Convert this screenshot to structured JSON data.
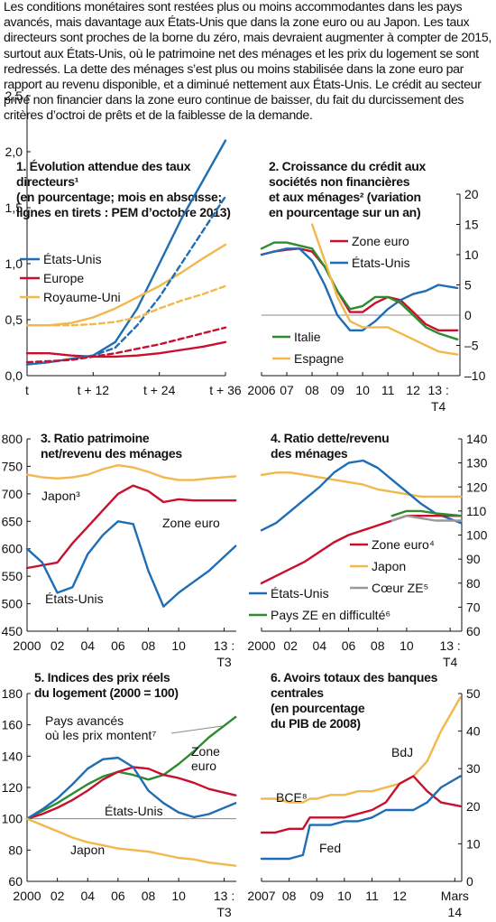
{
  "intro_text": "Les conditions monétaires sont restées plus ou moins accommodantes dans les pays avancés, mais davantage aux États-Unis que dans la zone euro ou au Japon. Les taux directeurs sont proches de la borne du zéro, mais devraient augmenter à compter de 2015, surtout aux États-Unis, où le patrimoine net des ménages et les prix du logement se sont redressés. La dette des ménages s’est plus ou moins stabilisée dans la zone euro par rapport au revenu disponible, et a diminué nettement aux États-Unis. Le crédit au secteur privé non financier dans la zone euro continue de baisser, du fait du durcissement des critères d’octroi de prêts et de la faiblesse de la demande.",
  "colors": {
    "usa": "#1f6db5",
    "europe": "#c8102e",
    "uk": "#f2b84b",
    "italy": "#2e8b2e",
    "grey": "#999999",
    "dark": "#111111"
  },
  "chart_data": [
    {
      "id": "p1",
      "type": "line",
      "title": "1. Évolution attendue des taux directeurs¹\n(en pourcentage; mois en abscisse; lignes en tirets : PEM d’octobre 2013)",
      "xticks": [
        "t",
        "t + 12",
        "t + 24",
        "t + 36"
      ],
      "yticks": [
        "0,0",
        "0,5",
        "1,0",
        "1,5",
        "2,0",
        "2,5"
      ],
      "ylim": [
        0,
        2.5
      ],
      "x": [
        0,
        4,
        8,
        12,
        16,
        20,
        24,
        28,
        32,
        36
      ],
      "series": [
        {
          "name": "États-Unis",
          "color": "usa",
          "dashed": false,
          "values": [
            0.1,
            0.12,
            0.15,
            0.18,
            0.3,
            0.6,
            1.0,
            1.4,
            1.75,
            2.1
          ]
        },
        {
          "name": "Europe",
          "color": "europe",
          "dashed": false,
          "values": [
            0.2,
            0.2,
            0.18,
            0.17,
            0.17,
            0.18,
            0.2,
            0.23,
            0.26,
            0.3
          ]
        },
        {
          "name": "Royaume-Uni",
          "color": "uk",
          "dashed": false,
          "values": [
            0.45,
            0.45,
            0.47,
            0.52,
            0.6,
            0.7,
            0.8,
            0.92,
            1.05,
            1.17
          ]
        },
        {
          "name": "",
          "color": "usa",
          "dashed": true,
          "values": [
            0.1,
            0.12,
            0.15,
            0.18,
            0.25,
            0.45,
            0.7,
            1.0,
            1.3,
            1.6
          ]
        },
        {
          "name": "",
          "color": "europe",
          "dashed": true,
          "values": [
            0.12,
            0.13,
            0.14,
            0.17,
            0.2,
            0.24,
            0.28,
            0.33,
            0.38,
            0.43
          ]
        },
        {
          "name": "",
          "color": "uk",
          "dashed": true,
          "values": [
            0.45,
            0.45,
            0.45,
            0.46,
            0.48,
            0.52,
            0.6,
            0.67,
            0.73,
            0.8
          ]
        }
      ],
      "legend": [
        {
          "label": "États-Unis",
          "color": "usa"
        },
        {
          "label": "Europe",
          "color": "europe"
        },
        {
          "label": "Royaume-Uni",
          "color": "uk"
        }
      ]
    },
    {
      "id": "p2",
      "type": "line",
      "title": "2. Croissance du crédit aux\nsociétés non financières\net aux ménages² (variation\nen pourcentage sur un an)",
      "xticks": [
        "2006",
        "07",
        "08",
        "09",
        "10",
        "11",
        "12",
        "13 :"
      ],
      "xsub": "T4",
      "yticks": [
        "–10",
        "–5",
        "0",
        "5",
        "10",
        "15",
        "20"
      ],
      "ylim": [
        -10,
        20
      ],
      "x": [
        2006,
        2006.5,
        2007,
        2007.5,
        2008,
        2008.5,
        2009,
        2009.5,
        2010,
        2010.5,
        2011,
        2011.5,
        2012,
        2012.5,
        2013,
        2013.75
      ],
      "series": [
        {
          "name": "Zone euro",
          "color": "europe",
          "values": [
            10,
            10.5,
            10.8,
            11,
            10.5,
            8,
            4,
            0.5,
            0.5,
            2,
            3,
            2.5,
            0.5,
            -1.5,
            -2.5,
            -2.5
          ]
        },
        {
          "name": "États-Unis",
          "color": "usa",
          "values": [
            10,
            10.5,
            11,
            11,
            9,
            5,
            0,
            -2.5,
            -2.5,
            -1,
            1,
            2.5,
            3.5,
            4,
            5,
            4.5
          ]
        },
        {
          "name": "Italie",
          "color": "italy",
          "values": [
            11,
            12,
            12,
            11.5,
            11,
            8,
            4,
            1,
            1.5,
            3,
            3,
            2,
            0,
            -2,
            -3,
            -4
          ]
        },
        {
          "name": "Espagne",
          "color": "uk",
          "values": [
            null,
            null,
            null,
            null,
            15,
            9,
            3,
            -1,
            -2,
            -2,
            -2,
            -3,
            -4,
            -5,
            -6,
            -6.5
          ]
        }
      ],
      "legend": [
        {
          "label": "Zone euro",
          "color": "europe"
        },
        {
          "label": "États-Unis",
          "color": "usa"
        },
        {
          "label": "Italie",
          "color": "italy"
        },
        {
          "label": "Espagne",
          "color": "uk"
        }
      ]
    },
    {
      "id": "p3",
      "type": "line",
      "title": "3. Ratio patrimoine\nnet/revenu des ménages",
      "xticks": [
        "2000",
        "02",
        "04",
        "06",
        "08",
        "10",
        "13 :"
      ],
      "xsub": "T3",
      "yticks": [
        "450",
        "500",
        "550",
        "600",
        "650",
        "700",
        "750",
        "800"
      ],
      "ylim": [
        450,
        800
      ],
      "x": [
        2000,
        2001,
        2002,
        2003,
        2004,
        2005,
        2006,
        2007,
        2008,
        2009,
        2010,
        2011,
        2012,
        2013.75
      ],
      "series": [
        {
          "name": "Japon³",
          "color": "uk",
          "values": [
            735,
            730,
            728,
            730,
            735,
            745,
            752,
            748,
            740,
            730,
            725,
            725,
            728,
            732
          ]
        },
        {
          "name": "Zone euro",
          "color": "europe",
          "values": [
            565,
            570,
            575,
            610,
            640,
            670,
            700,
            715,
            705,
            685,
            690,
            688,
            688,
            688
          ]
        },
        {
          "name": "États-Unis",
          "color": "usa",
          "values": [
            600,
            575,
            520,
            530,
            590,
            625,
            650,
            645,
            560,
            495,
            520,
            540,
            560,
            605
          ]
        }
      ],
      "labels": [
        "Japon³",
        "Zone euro",
        "États-Unis"
      ]
    },
    {
      "id": "p4",
      "type": "line",
      "title": "4. Ratio dette/revenu\ndes ménages",
      "xticks": [
        "2000",
        "02",
        "04",
        "06",
        "08",
        "10",
        "13 :"
      ],
      "xsub": "T4",
      "yticks": [
        "60",
        "70",
        "80",
        "90",
        "100",
        "110",
        "120",
        "130",
        "140"
      ],
      "ylim": [
        60,
        140
      ],
      "x": [
        2000,
        2001,
        2002,
        2003,
        2004,
        2005,
        2006,
        2007,
        2008,
        2009,
        2010,
        2011,
        2012,
        2013.75
      ],
      "series": [
        {
          "name": "Japon",
          "color": "uk",
          "values": [
            125,
            126,
            126,
            125,
            124,
            123,
            122,
            121,
            119,
            118,
            117,
            116,
            116,
            116
          ]
        },
        {
          "name": "États-Unis",
          "color": "usa",
          "values": [
            102,
            105,
            110,
            115,
            120,
            126,
            130,
            131,
            128,
            123,
            118,
            113,
            109,
            105
          ]
        },
        {
          "name": "Zone euro⁴",
          "color": "europe",
          "values": [
            80,
            83,
            86,
            89,
            93,
            97,
            100,
            102,
            104,
            106,
            108,
            108,
            108,
            108
          ]
        },
        {
          "name": "Cœur ZE⁵",
          "color": "grey",
          "values": [
            null,
            null,
            null,
            null,
            null,
            null,
            null,
            null,
            null,
            106,
            108,
            107,
            106,
            106
          ]
        },
        {
          "name": "Pays ZE en difficulté⁶",
          "color": "italy",
          "values": [
            null,
            null,
            null,
            null,
            null,
            null,
            null,
            null,
            null,
            108,
            110,
            110,
            109,
            108
          ]
        }
      ],
      "legend": [
        {
          "label": "Zone euro⁴",
          "color": "europe"
        },
        {
          "label": "Japon",
          "color": "uk"
        },
        {
          "label": "États-Unis",
          "color": "usa"
        },
        {
          "label": "Cœur ZE⁵",
          "color": "grey"
        },
        {
          "label": "Pays ZE en difficulté⁶",
          "color": "italy"
        }
      ]
    },
    {
      "id": "p5",
      "type": "line",
      "title": "5. Indices des prix réels\ndu logement (2000 = 100)",
      "xticks": [
        "2000",
        "02",
        "04",
        "06",
        "08",
        "10",
        "13 :"
      ],
      "xsub": "T3",
      "yticks": [
        "60",
        "80",
        "100",
        "120",
        "140",
        "160",
        "180"
      ],
      "ylim": [
        60,
        180
      ],
      "x": [
        2000,
        2001,
        2002,
        2003,
        2004,
        2005,
        2006,
        2007,
        2008,
        2009,
        2010,
        2011,
        2012,
        2013.75
      ],
      "series": [
        {
          "name": "Pays avancés où les prix montent⁷",
          "color": "italy",
          "values": [
            100,
            105,
            110,
            116,
            122,
            127,
            130,
            128,
            125,
            128,
            135,
            143,
            152,
            165
          ]
        },
        {
          "name": "Zone euro",
          "color": "europe",
          "values": [
            100,
            103,
            107,
            112,
            118,
            125,
            130,
            133,
            132,
            128,
            126,
            123,
            119,
            115
          ]
        },
        {
          "name": "États-Unis",
          "color": "usa",
          "values": [
            100,
            106,
            113,
            122,
            132,
            138,
            139,
            133,
            118,
            110,
            104,
            101,
            103,
            110
          ]
        },
        {
          "name": "Japon",
          "color": "uk",
          "values": [
            100,
            96,
            92,
            88,
            85,
            83,
            81,
            80,
            79,
            77,
            75,
            74,
            72,
            70
          ]
        }
      ],
      "labels": [
        "Pays avancés\noù les prix montent⁷",
        "Zone\neuro",
        "États-Unis",
        "Japon"
      ]
    },
    {
      "id": "p6",
      "type": "line",
      "title": "6. Avoirs totaux des banques\ncentrales\n(en pourcentage\ndu PIB de 2008)",
      "xticks": [
        "2007",
        "08",
        "09",
        "10",
        "11",
        "12",
        "Mars"
      ],
      "xsub": "14",
      "yticks": [
        "0",
        "10",
        "20",
        "30",
        "40",
        "50"
      ],
      "ylim": [
        0,
        50
      ],
      "x": [
        2007,
        2007.5,
        2008,
        2008.5,
        2008.75,
        2009,
        2009.5,
        2010,
        2010.5,
        2011,
        2011.5,
        2012,
        2012.5,
        2013,
        2013.5,
        2014.2
      ],
      "series": [
        {
          "name": "BdJ",
          "color": "uk",
          "values": [
            22,
            22,
            21,
            21,
            22,
            22,
            23,
            23,
            24,
            24,
            25,
            26,
            28,
            32,
            40,
            49
          ]
        },
        {
          "name": "BCE⁸",
          "color": "europe",
          "values": [
            13,
            13,
            14,
            14,
            17,
            17,
            17,
            17,
            18,
            19,
            21,
            26,
            28,
            24,
            21,
            20
          ]
        },
        {
          "name": "Fed",
          "color": "usa",
          "values": [
            6,
            6,
            6,
            7,
            15,
            15,
            15,
            16,
            16,
            17,
            19,
            19,
            19,
            21,
            25,
            28
          ]
        }
      ],
      "labels": [
        "BdJ",
        "BCE⁸",
        "Fed"
      ]
    }
  ]
}
